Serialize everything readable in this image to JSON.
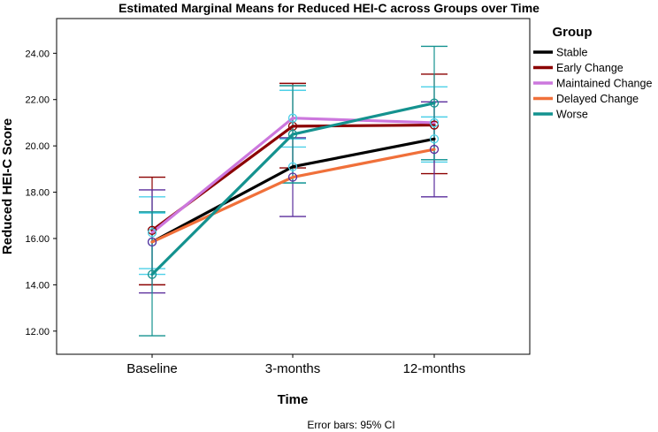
{
  "chart_data": {
    "type": "line",
    "title": "Estimated Marginal Means for Reduced HEI-C across Groups over Time",
    "xlabel": "Time",
    "ylabel": "Reduced HEI-C Score",
    "categories": [
      "Baseline",
      "3-months",
      "12-months"
    ],
    "ylim": [
      11.0,
      25.5
    ],
    "yticks": [
      12,
      14,
      16,
      18,
      20,
      22,
      24
    ],
    "ytick_labels": [
      "12.00",
      "14.00",
      "16.00",
      "18.00",
      "20.00",
      "22.00",
      "24.00"
    ],
    "grid": false,
    "legend_title": "Group",
    "legend_position": "top-right",
    "note": "Error bars: 95% CI",
    "series": [
      {
        "name": "Stable",
        "color": "#000000",
        "values": [
          15.85,
          19.1,
          20.3
        ],
        "ci_low": [
          14.7,
          18.4,
          19.3
        ],
        "ci_high": [
          17.1,
          19.95,
          21.25
        ],
        "ci_color": "#4DD0E8"
      },
      {
        "name": "Early Change",
        "color": "#8B0000",
        "values": [
          16.35,
          20.85,
          20.9
        ],
        "ci_low": [
          14.0,
          19.05,
          18.8
        ],
        "ci_high": [
          18.65,
          22.7,
          23.1
        ],
        "ci_color": "#8B0000"
      },
      {
        "name": "Maintained Change",
        "color": "#CC77DD",
        "values": [
          16.25,
          21.2,
          21.0
        ],
        "ci_low": [
          14.45,
          20.3,
          19.4
        ],
        "ci_high": [
          17.8,
          22.4,
          22.55
        ],
        "ci_color": "#4DD0E8"
      },
      {
        "name": "Delayed Change",
        "color": "#F0703A",
        "values": [
          15.85,
          18.65,
          19.85
        ],
        "ci_low": [
          13.65,
          16.95,
          17.8
        ],
        "ci_high": [
          18.1,
          20.35,
          21.9
        ],
        "ci_color": "#5A2D9C"
      },
      {
        "name": "Worse",
        "color": "#14928F",
        "values": [
          14.45,
          20.5,
          21.85
        ],
        "ci_low": [
          11.8,
          18.4,
          19.4
        ],
        "ci_high": [
          17.15,
          22.6,
          24.3
        ],
        "ci_color": "#14928F"
      }
    ]
  }
}
